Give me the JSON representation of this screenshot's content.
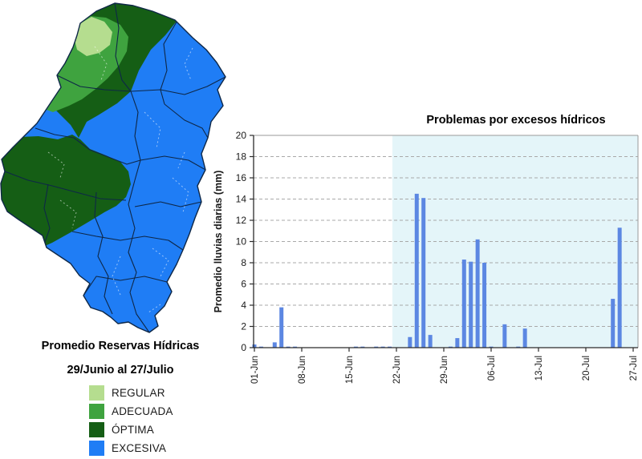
{
  "map_panel": {
    "title_line1": "Promedio Reservas Hídricas",
    "title_line2": "29/Junio al 27/Julio",
    "legend": [
      {
        "label": "REGULAR",
        "color": "#b5dd8f"
      },
      {
        "label": "ADECUADA",
        "color": "#3fa33f"
      },
      {
        "label": "ÓPTIMA",
        "color": "#155e15"
      },
      {
        "label": "EXCESIVA",
        "color": "#1f7df5"
      }
    ],
    "border_color": "#0e2747"
  },
  "chart_data": {
    "type": "bar",
    "title": "Problemas por excesos hídricos",
    "ylabel": "Promedio lluvias diarias (mm)",
    "ylim": [
      0,
      20
    ],
    "ytick_step": 2,
    "x_range_days": 57,
    "x_tick_days": [
      1,
      8,
      15,
      22,
      29,
      36,
      43,
      50,
      57
    ],
    "x_tick_labels": [
      "01-Jun",
      "08-Jun",
      "15-Jun",
      "22-Jun",
      "29-Jun",
      "06-Jul",
      "13-Jul",
      "20-Jul",
      "27-Jul"
    ],
    "grid": true,
    "legend_position": "none",
    "bar_color": "#5c87e2",
    "highlight_region": {
      "start_day": 21.4,
      "end_day": 57.7,
      "color": "#e4f5f9"
    },
    "bars": [
      {
        "date": "01-Jun",
        "day": 1,
        "value": 0.3
      },
      {
        "date": "02-Jun",
        "day": 2,
        "value": 0.1
      },
      {
        "date": "04-Jun",
        "day": 4,
        "value": 0.5
      },
      {
        "date": "05-Jun",
        "day": 5,
        "value": 3.8
      },
      {
        "date": "06-Jun",
        "day": 6,
        "value": 0.1
      },
      {
        "date": "07-Jun",
        "day": 7,
        "value": 0.1
      },
      {
        "date": "16-Jun",
        "day": 16,
        "value": 0.1
      },
      {
        "date": "17-Jun",
        "day": 17,
        "value": 0.1
      },
      {
        "date": "19-Jun",
        "day": 19,
        "value": 0.1
      },
      {
        "date": "20-Jun",
        "day": 20,
        "value": 0.1
      },
      {
        "date": "21-Jun",
        "day": 21,
        "value": 0.1
      },
      {
        "date": "24-Jun",
        "day": 24,
        "value": 1.0
      },
      {
        "date": "25-Jun",
        "day": 25,
        "value": 14.5
      },
      {
        "date": "26-Jun",
        "day": 26,
        "value": 14.1
      },
      {
        "date": "27-Jun",
        "day": 27,
        "value": 1.2
      },
      {
        "date": "30-Jun",
        "day": 30,
        "value": 0.1
      },
      {
        "date": "01-Jul",
        "day": 31,
        "value": 0.9
      },
      {
        "date": "02-Jul",
        "day": 32,
        "value": 8.3
      },
      {
        "date": "03-Jul",
        "day": 33,
        "value": 8.1
      },
      {
        "date": "04-Jul",
        "day": 34,
        "value": 10.2
      },
      {
        "date": "05-Jul",
        "day": 35,
        "value": 8.0
      },
      {
        "date": "06-Jul",
        "day": 36,
        "value": 0.1
      },
      {
        "date": "08-Jul",
        "day": 38,
        "value": 2.2
      },
      {
        "date": "10-Jul",
        "day": 40,
        "value": 0.1
      },
      {
        "date": "11-Jul",
        "day": 41,
        "value": 1.8
      },
      {
        "date": "24-Jul",
        "day": 54,
        "value": 4.6
      },
      {
        "date": "25-Jul",
        "day": 55,
        "value": 11.3
      }
    ]
  }
}
